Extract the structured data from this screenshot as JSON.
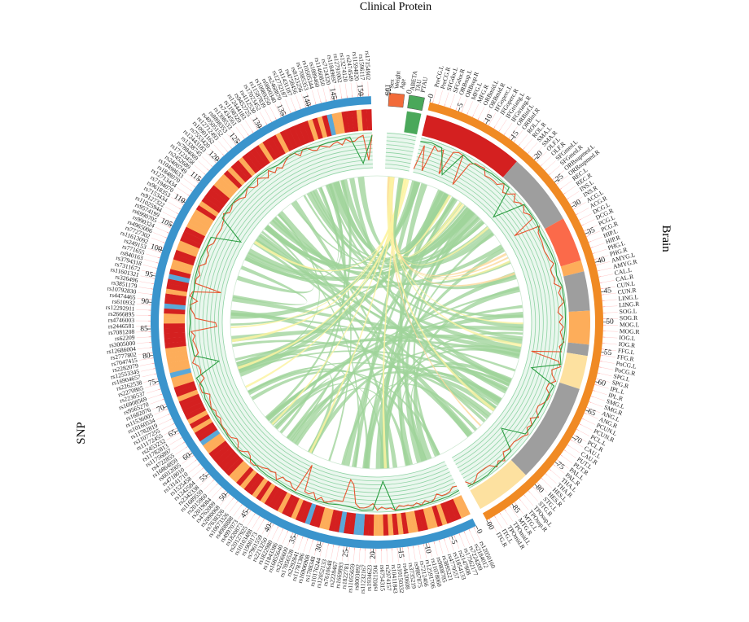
{
  "segments": [
    {
      "key": "clinical",
      "label": "Clinical Protein",
      "color": "#4a9a4f",
      "groups": [
        {
          "name": "demographic",
          "color": "#f26b3a",
          "items": [
            "Sex",
            "Weight",
            "Age"
          ]
        },
        {
          "name": "csf",
          "color": "#4aa85a",
          "items": [
            "ABETA",
            "TAU",
            "PTAU"
          ]
        }
      ],
      "ticks": [
        0,
        0
      ]
    },
    {
      "key": "brain",
      "label": "Brain",
      "color": "#f08a24",
      "items": [
        "PreCG.L",
        "PreCG.R",
        "SFGdor.L",
        "SFGdor.R",
        "ORBsup.L",
        "ORBsup.R",
        "MFG.L",
        "MFG.R",
        "ORBmid.L",
        "ORBmid.R",
        "IFGoperc.L",
        "IFGoperc.R",
        "IFGtriang.L",
        "IFGtriang.R",
        "ORBinf.L",
        "ORBinf.R",
        "ROL.L",
        "ROL.R",
        "SMA.L",
        "SMA.R",
        "OLF.L",
        "OLF.R",
        "SFGmed.L",
        "SFGmed.R",
        "ORBsupmed.L",
        "ORBsupmed.R",
        "REC.L",
        "REC.R",
        "INS.L",
        "INS.R",
        "ACG.L",
        "ACG.R",
        "DCG.L",
        "DCG.R",
        "PCG.L",
        "PCG.R",
        "HIP.L",
        "HIP.R",
        "PHG.L",
        "PHG.R",
        "AMYG.L",
        "AMYG.R",
        "CAL.L",
        "CAL.R",
        "CUN.L",
        "CUN.R",
        "LING.L",
        "LING.R",
        "SOG.L",
        "SOG.R",
        "MOG.L",
        "MOG.R",
        "IOG.L",
        "IOG.R",
        "FFG.L",
        "FFG.R",
        "PoCG.L",
        "PoCG.R",
        "SPG.L",
        "SPG.R",
        "IPL.L",
        "IPL.R",
        "SMG.L",
        "SMG.R",
        "ANG.L",
        "ANG.R",
        "PCUN.L",
        "PCUN.R",
        "PCL.L",
        "PCL.R",
        "CAU.L",
        "CAU.R",
        "PUT.L",
        "PUT.R",
        "PAL.L",
        "PAL.R",
        "THA.L",
        "THA.R",
        "HES.L",
        "HES.R",
        "STG.L",
        "STG.R",
        "TPOsup.L",
        "TPOsup.R",
        "MTG.L",
        "MTG.R",
        "TPOmid.L",
        "TPOmid.R",
        "ITG.L",
        "ITG.R"
      ],
      "ticks": [
        0,
        5,
        10,
        15,
        20,
        25,
        30,
        35,
        40,
        45,
        50,
        55,
        60,
        65,
        70,
        75,
        80,
        85,
        90
      ]
    },
    {
      "key": "snp",
      "label": "SNP",
      "color": "#3a94cc",
      "items": [
        "rs12050160",
        "rs2184012",
        "rs7224209",
        "rs17562177",
        "rs2147808",
        "rs11854133",
        "rs4779557",
        "rs3895221",
        "rs9808785",
        "rs11078060",
        "rs12591706",
        "rs7212466",
        "rs9887875",
        "rs3735219",
        "rs4420608",
        "rs10150332",
        "rs10411843",
        "rs2974157",
        "rs6754315",
        "rs8021504",
        "rs1934623",
        "rs11232167",
        "rs8003092",
        "rs11055659",
        "rs1822781",
        "rs1669893",
        "rs2228467",
        "rs7610648",
        "rs12052133",
        "rs10176244",
        "rs1788348",
        "rs16906908",
        "rs11781386",
        "rs2292841",
        "rs17856528",
        "rs2206600",
        "rs16855640",
        "rs11843386",
        "rs1822980",
        "rs2213250",
        "rs7961559",
        "rs1900173",
        "rs10103488",
        "rs20127925",
        "rs1820873",
        "rs4997073",
        "rs4908888",
        "rs10673326",
        "rs7638326",
        "rs2090068",
        "rs4762009",
        "rs2019084",
        "rs2015960",
        "rs11689559",
        "rs2342338",
        "rs1242584",
        "rs1525458",
        "rs13141710",
        "rs4718010",
        "rs6012005",
        "rs16864859",
        "rs4722855",
        "rs11756897",
        "rs11782813",
        "rs2453232",
        "rs11172455",
        "rs11077255",
        "rs11782819",
        "rs10160534",
        "rs11536005",
        "rs1682076",
        "rs9565270",
        "rs16908569",
        "rs2236537",
        "rs2270865",
        "rs2262538",
        "rs16904657",
        "rs12553345",
        "rs2282079",
        "rs7047415",
        "rs2777802",
        "rs12686004",
        "rs3005000",
        "rs62209",
        "rs7081208",
        "rs2446581",
        "rs4746003",
        "rs2666895",
        "rs12292911",
        "rs610932",
        "rs4474465",
        "rs10792830",
        "rs3851179",
        "rs326496",
        "rs11601321",
        "rs7311672",
        "rs3794318",
        "rs840163",
        "rs771655",
        "rs249153",
        "rs11613092",
        "rs7727302",
        "rs4965006",
        "rs990324",
        "rs6990705",
        "rs9574199",
        "rs11025944",
        "rs9127322",
        "rs7153434",
        "rs9618353",
        "rs7194070",
        "rs12713434",
        "rs1848070",
        "rs10498633",
        "rs2400749",
        "rs2452689",
        "rs17123458",
        "rs7884069",
        "rs1338745",
        "rs12443183",
        "rs7553420",
        "rs10901162",
        "rs12712493",
        "rs40505152",
        "rs8898353",
        "rs1398533",
        "rs7434561",
        "rs1198320",
        "rs12444183",
        "rs9452725",
        "rs4112530",
        "rs17023452",
        "rs11587839",
        "rs10989250",
        "rs9800340",
        "rs2460870",
        "rs12732187",
        "rs11431187",
        "rs4758456",
        "rs8123256",
        "rs17085353",
        "rs10505344",
        "rs1889460",
        "rs11460850",
        "rs7124320",
        "rs11849697",
        "rs12791002",
        "rs13274120",
        "rs2474549",
        "rs11594020",
        "rs1596117",
        "rs17154902"
      ],
      "ticks": [
        0,
        5,
        10,
        15,
        20,
        25,
        30,
        35,
        40,
        45,
        50,
        55,
        60,
        65,
        70,
        75,
        80,
        85,
        90,
        95,
        100,
        105,
        110,
        115,
        120,
        125,
        130,
        135,
        140,
        145,
        150,
        155
      ]
    }
  ],
  "tracks": {
    "heat_colors": {
      "high": "#d42020",
      "mid": "#fdad5a",
      "low": "#fde1a0",
      "gray": "#9e9e9e",
      "salmon": "#fb6a4a"
    },
    "line_red": "#e8542e",
    "line_green": "#2f9e44",
    "grid_color": "#8fd3a4",
    "band_fill": "#eaf7ee"
  },
  "links": {
    "green": "#9fd39a",
    "yellow": "#fbf3a2",
    "orange": "#fcd89a"
  }
}
